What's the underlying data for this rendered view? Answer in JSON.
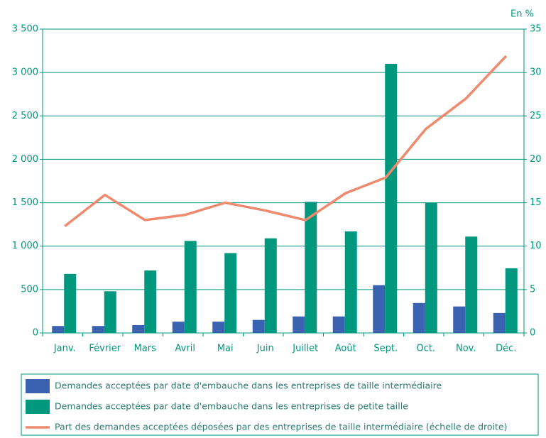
{
  "chart_data": {
    "type": "bar",
    "y2_label": "En %",
    "categories": [
      "Janv.",
      "Février",
      "Mars",
      "Avril",
      "Mai",
      "Juin",
      "Juillet",
      "Août",
      "Sept.",
      "Oct.",
      "Nov.",
      "Déc."
    ],
    "series": [
      {
        "name": "Demandes acceptées par date d'embauche dans les entreprises de taille intermédiaire",
        "color": "#3a62b0",
        "type": "bar",
        "axis": "y",
        "values": [
          80,
          80,
          90,
          130,
          130,
          150,
          190,
          190,
          550,
          345,
          305,
          230
        ]
      },
      {
        "name": "Demandes acceptées par date d'embauche dans les entreprises de petite taille",
        "color": "#00977f",
        "type": "bar",
        "axis": "y",
        "values": [
          680,
          480,
          720,
          1060,
          920,
          1090,
          1510,
          1170,
          3100,
          1500,
          1110,
          745
        ]
      },
      {
        "name": "Part des demandes acceptées déposées par des entreprises de taille intermédiaire (échelle de droite)",
        "color": "#f08a6e",
        "type": "line",
        "axis": "y2",
        "values": [
          12.3,
          15.9,
          13.0,
          13.6,
          15.0,
          14.1,
          13.0,
          16.1,
          17.9,
          23.5,
          27.0,
          31.9
        ]
      }
    ],
    "ylim": [
      0,
      3500
    ],
    "yticks": [
      0,
      500,
      {
        "value": 1000,
        "label": "1 000"
      },
      {
        "value": 1500,
        "label": "1 500"
      },
      {
        "value": 2000,
        "label": "2 000"
      },
      {
        "value": 2500,
        "label": "2 500"
      },
      {
        "value": 3000,
        "label": "3 000"
      },
      {
        "value": 3500,
        "label": "3 500"
      }
    ],
    "y2lim": [
      0,
      35
    ],
    "y2ticks": [
      0,
      5,
      10,
      15,
      20,
      25,
      30,
      35
    ],
    "grid": true
  }
}
